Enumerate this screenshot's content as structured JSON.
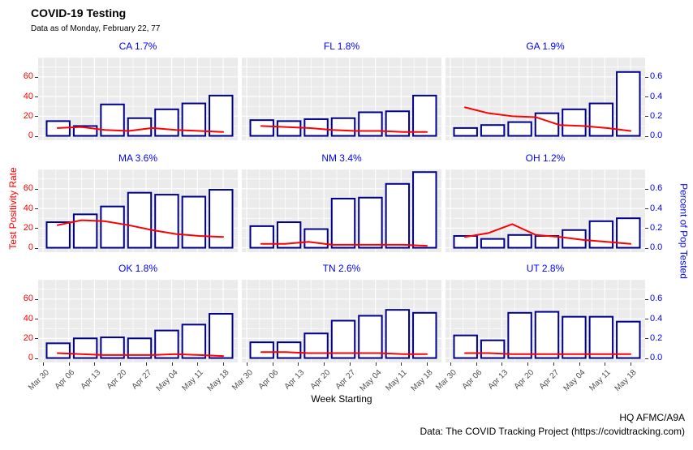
{
  "header": {
    "title": "COVID-19 Testing",
    "subtitle": "Data as of Monday, February 22, 77"
  },
  "axes": {
    "x_title": "Week Starting",
    "left_title": "Test Positivity Rate",
    "right_title": "Percent of Pop Tested",
    "left_tick_labels": [
      "0",
      "20",
      "40",
      "60"
    ],
    "left_tick_values": [
      0,
      20,
      40,
      60
    ],
    "right_tick_labels": [
      "0.0",
      "0.2",
      "0.4",
      "0.6"
    ],
    "x_tick_labels": [
      "Mar 30",
      "Apr 06",
      "Apr 13",
      "Apr 20",
      "Apr 27",
      "May 04",
      "May 11",
      "May 18"
    ]
  },
  "caption": {
    "org": "HQ AFMC/A9A",
    "source": "Data: The COVID Tracking Project (https://covidtracking.com)"
  },
  "colors": {
    "bar_stroke": "#00008B",
    "bar_fill": "#FFFFFF",
    "line": "#FF0000",
    "facet_title": "#0000FF",
    "left_axis": "#FF0000",
    "right_axis": "#0000FF",
    "panel_bg": "#EBEBEB",
    "grid": "#FFFFFF",
    "axis_text": "#4D4D4D",
    "tick_mark": "#333333"
  },
  "chart_data": {
    "type": "bar",
    "subtype": "faceted-bar-plus-line-dual-axis",
    "facet_grid": {
      "rows": 3,
      "cols": 3
    },
    "grid": true,
    "bar_x": [
      "Mar 30",
      "Apr 06",
      "Apr 13",
      "Apr 20",
      "Apr 27",
      "May 04",
      "May 11"
    ],
    "line_x": [
      "Mar 30",
      "Apr 06",
      "Apr 13",
      "Apr 20",
      "Apr 27",
      "May 04",
      "May 11",
      "May 18"
    ],
    "left_axis": {
      "label": "Test Positivity Rate",
      "ticks": [
        0,
        20,
        40,
        60
      ],
      "range": [
        0,
        80
      ]
    },
    "right_axis": {
      "label": "Percent of Pop Tested",
      "ticks": [
        0.0,
        0.2,
        0.4,
        0.6
      ],
      "range": [
        0,
        0.8
      ]
    },
    "facets": [
      {
        "title": "CA 1.7%",
        "bars_percent_pop_tested": [
          0.15,
          0.1,
          0.32,
          0.18,
          0.27,
          0.33,
          0.41
        ],
        "line_test_positivity_rate": [
          8,
          9,
          6,
          5,
          8,
          6,
          5,
          4
        ]
      },
      {
        "title": "FL 1.8%",
        "bars_percent_pop_tested": [
          0.16,
          0.15,
          0.17,
          0.18,
          0.24,
          0.25,
          0.41
        ],
        "line_test_positivity_rate": [
          10,
          9,
          8,
          6,
          5,
          5,
          4,
          4
        ]
      },
      {
        "title": "GA 1.9%",
        "bars_percent_pop_tested": [
          0.08,
          0.11,
          0.14,
          0.23,
          0.27,
          0.33,
          0.65
        ],
        "line_test_positivity_rate": [
          29,
          23,
          20,
          19,
          11,
          10,
          8,
          5
        ]
      },
      {
        "title": "MA 3.6%",
        "bars_percent_pop_tested": [
          0.26,
          0.34,
          0.42,
          0.56,
          0.54,
          0.52,
          0.59
        ],
        "line_test_positivity_rate": [
          23,
          28,
          27,
          23,
          18,
          14,
          12,
          11
        ]
      },
      {
        "title": "NM 3.4%",
        "bars_percent_pop_tested": [
          0.22,
          0.26,
          0.19,
          0.5,
          0.51,
          0.65,
          0.77
        ],
        "line_test_positivity_rate": [
          4,
          4,
          6,
          3,
          3,
          3,
          3,
          2
        ]
      },
      {
        "title": "OH 1.2%",
        "bars_percent_pop_tested": [
          0.12,
          0.09,
          0.13,
          0.12,
          0.18,
          0.27,
          0.3
        ],
        "line_test_positivity_rate": [
          11,
          15,
          24,
          13,
          11,
          8,
          6,
          4
        ]
      },
      {
        "title": "OK 1.8%",
        "bars_percent_pop_tested": [
          0.15,
          0.2,
          0.21,
          0.2,
          0.28,
          0.34,
          0.45
        ],
        "line_test_positivity_rate": [
          5,
          4,
          3,
          3,
          3,
          4,
          3,
          2
        ]
      },
      {
        "title": "TN 2.6%",
        "bars_percent_pop_tested": [
          0.16,
          0.16,
          0.25,
          0.38,
          0.43,
          0.49,
          0.46
        ],
        "line_test_positivity_rate": [
          6,
          6,
          5,
          5,
          5,
          5,
          4,
          4
        ]
      },
      {
        "title": "UT 2.8%",
        "bars_percent_pop_tested": [
          0.23,
          0.18,
          0.46,
          0.47,
          0.42,
          0.42,
          0.37
        ],
        "line_test_positivity_rate": [
          5,
          5,
          4,
          4,
          4,
          4,
          4,
          4
        ]
      }
    ]
  }
}
